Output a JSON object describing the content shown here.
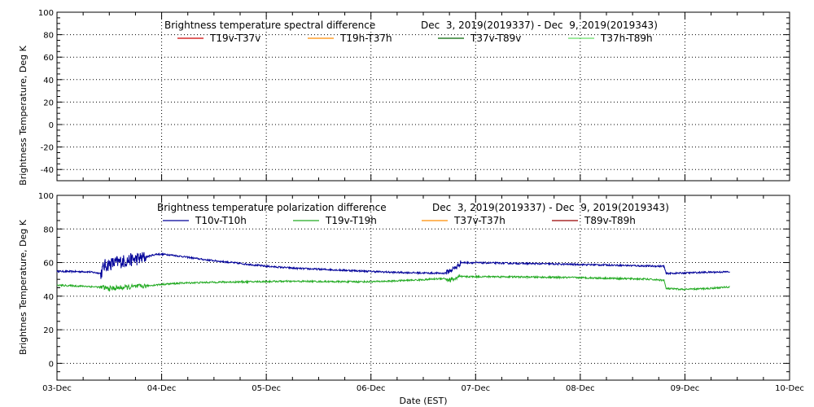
{
  "chart_data": [
    {
      "type": "line",
      "title": "Brightness temperature spectral difference",
      "date_range": "Dec  3, 2019(2019337) - Dec  9, 2019(2019343)",
      "ylabel": "Brightness Temperature, Deg K",
      "ylim": [
        -50,
        100
      ],
      "yticks": [
        -40,
        -20,
        0,
        20,
        40,
        60,
        80,
        100
      ],
      "grid": true,
      "legend_position": "top",
      "series": [
        {
          "name": "T19v-T37v",
          "color": "#cc0000",
          "points": []
        },
        {
          "name": "T19h-T37h",
          "color": "#ff8c00",
          "points": []
        },
        {
          "name": "T37v-T89v",
          "color": "#006400",
          "points": []
        },
        {
          "name": "T37h-T89h",
          "color": "#66dd66",
          "points": []
        }
      ]
    },
    {
      "type": "line",
      "title": "Brightness temperature polarization difference",
      "date_range": "Dec  3, 2019(2019337) - Dec  9, 2019(2019343)",
      "ylabel": "Brightnes Temperature, Deg K",
      "xlabel": "Date (EST)",
      "ylim": [
        -10,
        100
      ],
      "yticks": [
        0,
        20,
        40,
        60,
        80,
        100
      ],
      "xlim": [
        0,
        7
      ],
      "xticks": [
        0,
        1,
        2,
        3,
        4,
        5,
        6,
        7
      ],
      "xticklabels": [
        "03-Dec",
        "04-Dec",
        "05-Dec",
        "06-Dec",
        "07-Dec",
        "08-Dec",
        "09-Dec",
        "10-Dec"
      ],
      "grid": true,
      "legend_position": "top",
      "series": [
        {
          "name": "T10v-T10h",
          "color": "#000099",
          "noise": 0.5,
          "points": [
            [
              0.0,
              54.8
            ],
            [
              0.3,
              54.5
            ],
            [
              0.42,
              53.6
            ],
            [
              0.45,
              58
            ],
            [
              0.5,
              59
            ],
            [
              0.6,
              60.5
            ],
            [
              0.7,
              61.5
            ],
            [
              0.8,
              62.5
            ],
            [
              0.88,
              63.8
            ],
            [
              0.95,
              65
            ],
            [
              1.05,
              64.8
            ],
            [
              1.2,
              63.6
            ],
            [
              1.4,
              61.8
            ],
            [
              1.7,
              59.8
            ],
            [
              2.0,
              57.8
            ],
            [
              2.3,
              56.5
            ],
            [
              2.6,
              55.8
            ],
            [
              2.9,
              55
            ],
            [
              3.2,
              54.2
            ],
            [
              3.5,
              53.8
            ],
            [
              3.7,
              53.6
            ],
            [
              3.75,
              55
            ],
            [
              3.82,
              57.5
            ],
            [
              3.85,
              59.5
            ],
            [
              3.86,
              60
            ],
            [
              4.1,
              59.8
            ],
            [
              4.4,
              59.5
            ],
            [
              4.7,
              59.2
            ],
            [
              5.0,
              58.8
            ],
            [
              5.3,
              58.5
            ],
            [
              5.6,
              58
            ],
            [
              5.8,
              57.8
            ],
            [
              5.82,
              53.5
            ],
            [
              6.0,
              53.8
            ],
            [
              6.2,
              54.2
            ],
            [
              6.43,
              54.5
            ]
          ]
        },
        {
          "name": "T19v-T19h",
          "color": "#22aa22",
          "noise": 0.5,
          "points": [
            [
              0.0,
              46.5
            ],
            [
              0.3,
              45.8
            ],
            [
              0.42,
              45.3
            ],
            [
              0.5,
              44.5
            ],
            [
              0.6,
              45
            ],
            [
              0.8,
              45.8
            ],
            [
              1.0,
              47
            ],
            [
              1.2,
              47.8
            ],
            [
              1.5,
              48.3
            ],
            [
              1.8,
              48.5
            ],
            [
              2.1,
              48.8
            ],
            [
              2.4,
              48.8
            ],
            [
              2.7,
              48.6
            ],
            [
              3.0,
              48.6
            ],
            [
              3.2,
              49
            ],
            [
              3.5,
              49.8
            ],
            [
              3.7,
              50.6
            ],
            [
              3.75,
              49.5
            ],
            [
              3.8,
              50.3
            ],
            [
              3.86,
              51.6
            ],
            [
              4.2,
              51.6
            ],
            [
              4.6,
              51.3
            ],
            [
              5.0,
              51
            ],
            [
              5.3,
              50.6
            ],
            [
              5.6,
              50.2
            ],
            [
              5.8,
              49.5
            ],
            [
              5.82,
              44.5
            ],
            [
              6.0,
              44
            ],
            [
              6.2,
              44.5
            ],
            [
              6.43,
              45.5
            ]
          ]
        },
        {
          "name": "T37v-T37h",
          "color": "#ff8c00",
          "points": []
        },
        {
          "name": "T89v-T89h",
          "color": "#990000",
          "points": []
        }
      ]
    }
  ]
}
